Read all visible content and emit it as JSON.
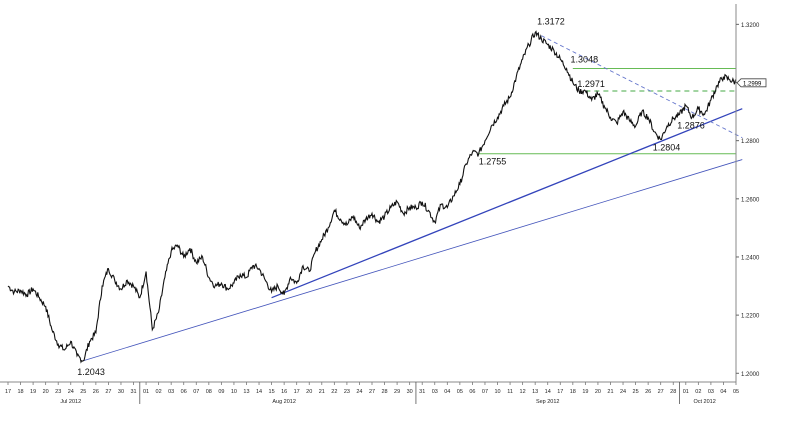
{
  "chart_data": {
    "type": "line",
    "title": "",
    "xlabel": "",
    "ylabel": "",
    "ylim": [
      1.197,
      1.327
    ],
    "y_ticks": [
      {
        "value": 1.2,
        "label": "1.2000"
      },
      {
        "value": 1.22,
        "label": "1.2200"
      },
      {
        "value": 1.24,
        "label": "1.2400"
      },
      {
        "value": 1.26,
        "label": "1.2600"
      },
      {
        "value": 1.28,
        "label": "1.2800"
      },
      {
        "value": 1.3,
        "label": "1.3000"
      },
      {
        "value": 1.32,
        "label": "1.3200"
      }
    ],
    "day_ticks": [
      "17",
      "18",
      "19",
      "20",
      "23",
      "24",
      "25",
      "26",
      "27",
      "30",
      "31",
      "01",
      "02",
      "03",
      "06",
      "07",
      "08",
      "09",
      "10",
      "13",
      "14",
      "15",
      "16",
      "17",
      "20",
      "21",
      "22",
      "23",
      "24",
      "27",
      "28",
      "29",
      "30",
      "31",
      "03",
      "04",
      "05",
      "06",
      "07",
      "10",
      "11",
      "12",
      "13",
      "14",
      "17",
      "18",
      "19",
      "20",
      "21",
      "24",
      "25",
      "26",
      "27",
      "28",
      "01",
      "02",
      "03",
      "04",
      "05"
    ],
    "month_labels": [
      {
        "text": "Jul 2012",
        "day_index": 5
      },
      {
        "text": "Aug 2012",
        "day_index": 22
      },
      {
        "text": "Sep 2012",
        "day_index": 43
      },
      {
        "text": "Oct 2012",
        "day_index": 55.5
      }
    ],
    "month_separators": [
      10.5,
      32.5,
      53.5
    ],
    "series": [
      {
        "values": [
          [
            0,
            1.23
          ],
          [
            0.5,
            1.228
          ],
          [
            1,
            1.2285
          ],
          [
            1.5,
            1.227
          ],
          [
            2,
            1.229
          ],
          [
            2.5,
            1.226
          ],
          [
            3,
            1.223
          ],
          [
            3.5,
            1.215
          ],
          [
            4,
            1.21
          ],
          [
            4.5,
            1.208
          ],
          [
            5,
            1.211
          ],
          [
            5.5,
            1.206
          ],
          [
            6,
            1.2043
          ],
          [
            6.5,
            1.211
          ],
          [
            7,
            1.214
          ],
          [
            7.5,
            1.23
          ],
          [
            8,
            1.236
          ],
          [
            8.5,
            1.232
          ],
          [
            9,
            1.229
          ],
          [
            9.5,
            1.232
          ],
          [
            10,
            1.23
          ],
          [
            10.5,
            1.226
          ],
          [
            11,
            1.235
          ],
          [
            11.5,
            1.215
          ],
          [
            12,
            1.221
          ],
          [
            12.5,
            1.233
          ],
          [
            13,
            1.242
          ],
          [
            13.5,
            1.244
          ],
          [
            14,
            1.24
          ],
          [
            14.5,
            1.243
          ],
          [
            15,
            1.238
          ],
          [
            15.5,
            1.24
          ],
          [
            16,
            1.233
          ],
          [
            16.5,
            1.23
          ],
          [
            17,
            1.231
          ],
          [
            17.5,
            1.229
          ],
          [
            18,
            1.231
          ],
          [
            18.5,
            1.234
          ],
          [
            19,
            1.233
          ],
          [
            19.5,
            1.237
          ],
          [
            20,
            1.236
          ],
          [
            20.5,
            1.232
          ],
          [
            21,
            1.228
          ],
          [
            21.5,
            1.23
          ],
          [
            22,
            1.227
          ],
          [
            22.5,
            1.233
          ],
          [
            23,
            1.231
          ],
          [
            23.5,
            1.237
          ],
          [
            24,
            1.235
          ],
          [
            24.5,
            1.242
          ],
          [
            25,
            1.246
          ],
          [
            25.5,
            1.25
          ],
          [
            26,
            1.256
          ],
          [
            26.5,
            1.253
          ],
          [
            27,
            1.251
          ],
          [
            27.5,
            1.254
          ],
          [
            28,
            1.25
          ],
          [
            28.5,
            1.253
          ],
          [
            29,
            1.255
          ],
          [
            29.5,
            1.252
          ],
          [
            30,
            1.254
          ],
          [
            30.5,
            1.257
          ],
          [
            31,
            1.259
          ],
          [
            31.5,
            1.255
          ],
          [
            32,
            1.257
          ],
          [
            32.5,
            1.257
          ],
          [
            33,
            1.259
          ],
          [
            33.5,
            1.256
          ],
          [
            34,
            1.252
          ],
          [
            34.5,
            1.258
          ],
          [
            35,
            1.257
          ],
          [
            35.5,
            1.261
          ],
          [
            36,
            1.265
          ],
          [
            36.5,
            1.272
          ],
          [
            37,
            1.276
          ],
          [
            37.5,
            1.2755
          ],
          [
            38,
            1.28
          ],
          [
            38.5,
            1.285
          ],
          [
            39,
            1.288
          ],
          [
            39.5,
            1.292
          ],
          [
            40,
            1.295
          ],
          [
            40.5,
            1.302
          ],
          [
            41,
            1.308
          ],
          [
            41.5,
            1.313
          ],
          [
            42,
            1.3172
          ],
          [
            42.5,
            1.315
          ],
          [
            43,
            1.313
          ],
          [
            43.5,
            1.311
          ],
          [
            44,
            1.308
          ],
          [
            44.5,
            1.3048
          ],
          [
            45,
            1.3
          ],
          [
            45.5,
            1.297
          ],
          [
            46,
            1.2971
          ],
          [
            46.5,
            1.294
          ],
          [
            47,
            1.296
          ],
          [
            47.5,
            1.292
          ],
          [
            48,
            1.288
          ],
          [
            48.5,
            1.286
          ],
          [
            49,
            1.29
          ],
          [
            49.5,
            1.287
          ],
          [
            50,
            1.285
          ],
          [
            50.5,
            1.29
          ],
          [
            51,
            1.288
          ],
          [
            51.5,
            1.283
          ],
          [
            52,
            1.2804
          ],
          [
            52.5,
            1.285
          ],
          [
            53,
            1.2876
          ],
          [
            53.5,
            1.289
          ],
          [
            54,
            1.292
          ],
          [
            54.5,
            1.288
          ],
          [
            55,
            1.291
          ],
          [
            55.5,
            1.289
          ],
          [
            56,
            1.294
          ],
          [
            56.5,
            1.299
          ],
          [
            57,
            1.302
          ],
          [
            57.5,
            1.301
          ],
          [
            58,
            1.2999
          ]
        ]
      }
    ],
    "annotations": [
      {
        "text": "1.3172",
        "x": 42,
        "y": 1.3172
      },
      {
        "text": "1.3048",
        "x": 44.5,
        "y": 1.3048
      },
      {
        "text": "1.2971",
        "x": 46,
        "y": 1.2971
      },
      {
        "text": "1.2876",
        "x": 53,
        "y": 1.2876
      },
      {
        "text": "1.2804",
        "x": 52,
        "y": 1.2804
      },
      {
        "text": "1.2755",
        "x": 37.5,
        "y": 1.2755
      },
      {
        "text": "1.2043",
        "x": 6,
        "y": 1.2043
      }
    ],
    "current_price": {
      "value": 1.2999,
      "label": "1.2999"
    },
    "horizontal_levels": [
      {
        "value": 1.3048,
        "style": "solid",
        "color": "#66bb55",
        "from": 45
      },
      {
        "value": 1.2971,
        "style": "dashed",
        "color": "#44aa44",
        "from": 46
      },
      {
        "value": 1.2755,
        "style": "solid",
        "color": "#66bb55",
        "from": 37.5
      }
    ],
    "trendlines": [
      {
        "from": [
          6,
          1.2043
        ],
        "to": [
          58.5,
          1.2735
        ],
        "style": "solid",
        "color": "#4455bb",
        "width": 0.8
      },
      {
        "from": [
          21,
          1.226
        ],
        "to": [
          58.5,
          1.291
        ],
        "style": "solid",
        "color": "#3344bb",
        "width": 1.3
      },
      {
        "from": [
          42,
          1.3172
        ],
        "to": [
          58.5,
          1.281
        ],
        "style": "dashed",
        "color": "#6677cc",
        "width": 0.9
      }
    ],
    "grid": false,
    "legend": "none"
  }
}
